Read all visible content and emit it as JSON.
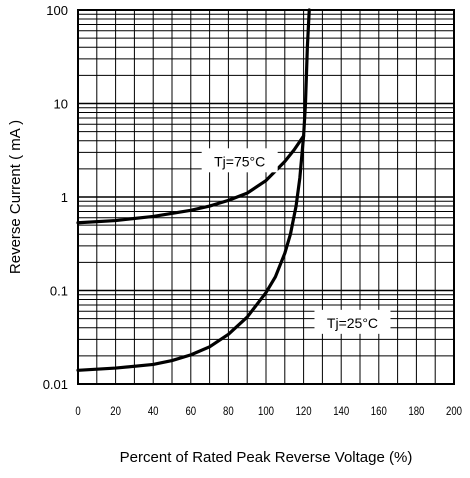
{
  "chart_data": {
    "type": "line",
    "title": "",
    "xlabel": "Percent of Rated Peak Reverse Voltage (%)",
    "ylabel": "Reverse Current ( mA )",
    "x_ticks": [
      "0",
      "20",
      "40",
      "60",
      "80",
      "100",
      "120",
      "140",
      "160",
      "180",
      "200"
    ],
    "y_ticks": [
      "0.01",
      "0.1",
      "1",
      "10",
      "100"
    ],
    "xlim": [
      0,
      200
    ],
    "ylim": [
      0.01,
      100
    ],
    "y_scale": "log",
    "grid": true,
    "series": [
      {
        "name": "Tj=75°C",
        "color": "#000000",
        "x": [
          0,
          20,
          40,
          60,
          70,
          80,
          90,
          100,
          110,
          115,
          120,
          121,
          122,
          123
        ],
        "y": [
          0.53,
          0.56,
          0.62,
          0.72,
          0.8,
          0.92,
          1.1,
          1.5,
          2.4,
          3.2,
          4.5,
          10,
          40,
          100
        ]
      },
      {
        "name": "Tj=25°C",
        "color": "#000000",
        "x": [
          0,
          20,
          40,
          50,
          60,
          70,
          80,
          90,
          100,
          105,
          110,
          113,
          116,
          118,
          120
        ],
        "y": [
          0.014,
          0.0148,
          0.0162,
          0.0178,
          0.0205,
          0.025,
          0.034,
          0.052,
          0.095,
          0.14,
          0.25,
          0.4,
          0.8,
          1.6,
          4.5
        ]
      }
    ],
    "annotations": [
      {
        "text": "Tj=75°C",
        "x": 86,
        "y": 2.35
      },
      {
        "text": "Tj=25°C",
        "x": 146,
        "y": 0.044
      }
    ]
  }
}
